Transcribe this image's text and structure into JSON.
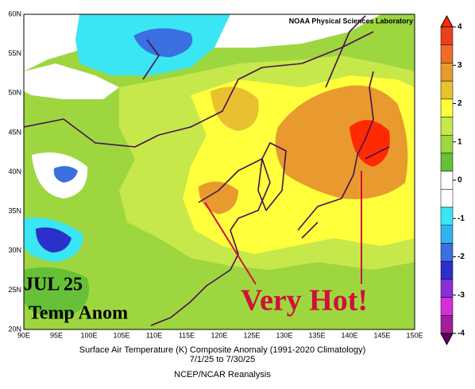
{
  "map": {
    "credit": "NOAA Physical Sciences Laboratory",
    "lat_labels": [
      "60N",
      "55N",
      "50N",
      "45N",
      "40N",
      "35N",
      "30N",
      "25N",
      "20N"
    ],
    "lon_labels": [
      "90E",
      "95E",
      "100E",
      "105E",
      "110E",
      "115E",
      "120E",
      "125E",
      "130E",
      "135E",
      "140E",
      "145E",
      "150E"
    ],
    "annotation": [
      "JUL 25",
      "Temp Anom"
    ],
    "callout": "Very Hot!",
    "caption": [
      "Surface Air Temperature (K) Composite Anomaly (1991-2020 Climatology)",
      "7/1/25  to 7/30/25",
      "NCEP/NCAR Reanalysis"
    ]
  },
  "colorbar": {
    "ticks": [
      4,
      3,
      2,
      1,
      0,
      -1,
      -2,
      -3,
      -4
    ],
    "colors": [
      "#ff2a00",
      "#e8401c",
      "#ee6e28",
      "#e89a2e",
      "#e8c030",
      "#ffff3c",
      "#c6e84a",
      "#9ed640",
      "#66c038",
      "#ffffff",
      "#ffffff",
      "#3ae6f4",
      "#30b4f0",
      "#3a70e0",
      "#2a30c8",
      "#8a30d8",
      "#d430d8",
      "#a02098",
      "#600060"
    ]
  }
}
